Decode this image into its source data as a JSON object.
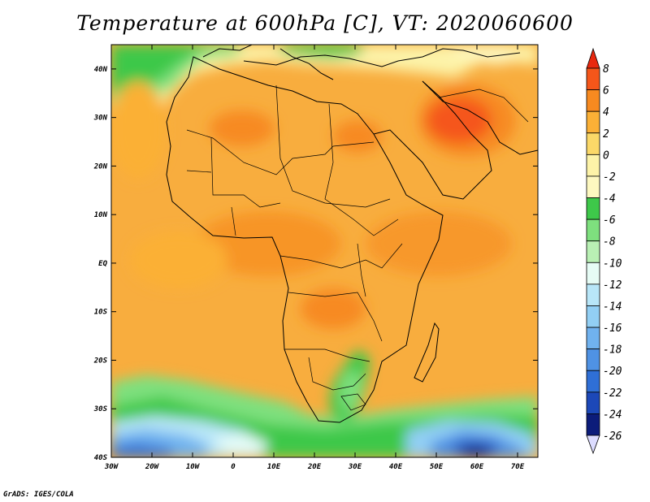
{
  "title": "Temperature at 600hPa [C], VT: 2020060600",
  "credit": "GrADS: IGES/COLA",
  "axes": {
    "lon_labels": [
      "30W",
      "20W",
      "10W",
      "0",
      "10E",
      "20E",
      "30E",
      "40E",
      "50E",
      "60E",
      "70E"
    ],
    "lat_labels": [
      "40N",
      "30N",
      "20N",
      "10N",
      "EQ",
      "10S",
      "20S",
      "30S",
      "40S"
    ],
    "lon_range": [
      -30,
      75
    ],
    "lat_range": [
      -40,
      45
    ]
  },
  "colorbar": {
    "labels": [
      "8",
      "6",
      "4",
      "2",
      "0",
      "-2",
      "-4",
      "-6",
      "-8",
      "-10",
      "-12",
      "-14",
      "-16",
      "-18",
      "-20",
      "-22",
      "-24",
      "-26"
    ],
    "colors": [
      "#e8280f",
      "#f5561a",
      "#f78a20",
      "#fbb036",
      "#fbd868",
      "#fdf3a8",
      "#fdf8c0",
      "#3ec84a",
      "#7ee07e",
      "#b9f0b4",
      "#e6fcf5",
      "#b8e6f8",
      "#92cff4",
      "#70b2ef",
      "#4f92e4",
      "#2f6fd6",
      "#1c48b8",
      "#0c1c7a",
      "#dcdcff"
    ]
  }
}
